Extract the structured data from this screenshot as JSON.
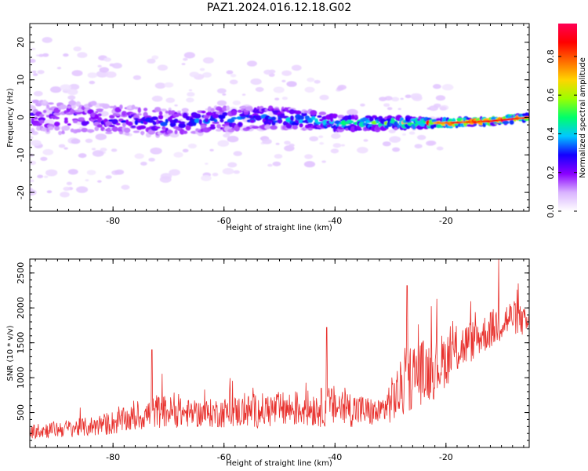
{
  "title": "PAZ1.2024.016.12.18.G02",
  "chart_data": [
    {
      "type": "heatmap",
      "xlabel": "Height of straight line (km)",
      "ylabel": "Frequency (Hz)",
      "xlim": [
        -95,
        -5
      ],
      "ylim": [
        -25,
        25
      ],
      "xticks": [
        -80,
        -60,
        -40,
        -20
      ],
      "yticks": [
        -20,
        -10,
        0,
        10,
        20
      ],
      "xtick_labels": [
        "-80",
        "-60",
        "-40",
        "-20"
      ],
      "ytick_labels": [
        "-20",
        "-10",
        "0",
        "10",
        "20"
      ],
      "colorbar": {
        "label": "Normalized spectral amplitude",
        "ticks": [
          0.0,
          0.2,
          0.4,
          0.6,
          0.8
        ],
        "tick_labels": [
          "0.0",
          "0.2",
          "0.4",
          "0.6",
          "0.8"
        ],
        "colormap": "gist_rainbow_r",
        "stops": [
          "#ffffff",
          "#d9b3ff",
          "#8a00ff",
          "#1400ff",
          "#00c8ff",
          "#00ff6a",
          "#9cff00",
          "#ffd400",
          "#ff6a00",
          "#ff0000",
          "#ff0055"
        ]
      },
      "band": {
        "description_points": [
          {
            "x": -92,
            "center": 0,
            "spread": 4.5,
            "intensity": 0.25
          },
          {
            "x": -80,
            "center": -0.5,
            "spread": 4.0,
            "intensity": 0.28
          },
          {
            "x": -70,
            "center": -1.5,
            "spread": 3.5,
            "intensity": 0.32
          },
          {
            "x": -60,
            "center": -0.5,
            "spread": 3.2,
            "intensity": 0.35
          },
          {
            "x": -50,
            "center": 0,
            "spread": 2.8,
            "intensity": 0.4
          },
          {
            "x": -40,
            "center": -1.5,
            "spread": 2.2,
            "intensity": 0.45
          },
          {
            "x": -30,
            "center": -1.5,
            "spread": 1.6,
            "intensity": 0.55
          },
          {
            "x": -20,
            "center": -1.5,
            "spread": 1.0,
            "intensity": 0.9
          },
          {
            "x": -12,
            "center": -1.0,
            "spread": 0.9,
            "intensity": 0.95
          },
          {
            "x": -5,
            "center": 0.0,
            "spread": 0.8,
            "intensity": 0.95
          }
        ]
      }
    },
    {
      "type": "line",
      "xlabel": "Height of straight line (km)",
      "ylabel": "SNR (10 * v/v)",
      "xlim": [
        -95,
        -5
      ],
      "ylim": [
        0,
        2700
      ],
      "xticks": [
        -80,
        -60,
        -40,
        -20
      ],
      "yticks": [
        500,
        1000,
        1500,
        2000,
        2500
      ],
      "xtick_labels": [
        "-80",
        "-60",
        "-40",
        "-20"
      ],
      "ytick_labels": [
        "500",
        "1000",
        "1500",
        "2000",
        "2500"
      ],
      "color": "#e8302c",
      "envelope": {
        "x": [
          -95,
          -85,
          -80,
          -75,
          -72,
          -65,
          -55,
          -45,
          -40,
          -32,
          -28,
          -26,
          -22,
          -18,
          -14,
          -12,
          -10,
          -8,
          -5
        ],
        "base": [
          200,
          250,
          300,
          380,
          450,
          420,
          450,
          480,
          500,
          430,
          700,
          900,
          1000,
          1300,
          1500,
          1600,
          1700,
          1800,
          1700
        ],
        "amp": [
          200,
          250,
          320,
          350,
          450,
          350,
          450,
          480,
          550,
          350,
          800,
          900,
          800,
          650,
          500,
          500,
          550,
          450,
          350
        ]
      },
      "peaks": [
        {
          "x": -73.0,
          "y": 1400
        },
        {
          "x": -41.5,
          "y": 1720
        },
        {
          "x": -27.0,
          "y": 2320
        },
        {
          "x": -10.5,
          "y": 2700
        },
        {
          "x": -7.0,
          "y": 2350
        }
      ]
    }
  ]
}
